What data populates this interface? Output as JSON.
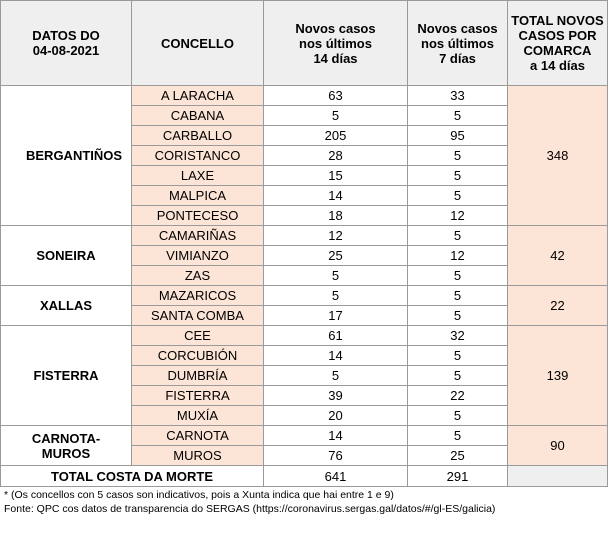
{
  "header": {
    "date": [
      "DATOS DO",
      "04-08-2021"
    ],
    "concello": [
      "CONCELLO"
    ],
    "cases14": [
      "Novos casos",
      "nos últimos",
      "14 días"
    ],
    "cases7": [
      "Novos casos",
      "nos últimos",
      "7 días"
    ],
    "total": [
      "TOTAL NOVOS",
      "CASOS POR",
      "COMARCA",
      "a 14 días"
    ]
  },
  "groups": [
    {
      "comarca": "BERGANTIÑOS",
      "total": 348,
      "concellos": [
        {
          "name": "A LARACHA",
          "c14": 63,
          "c7": 33
        },
        {
          "name": "CABANA",
          "c14": 5,
          "c7": 5
        },
        {
          "name": "CARBALLO",
          "c14": 205,
          "c7": 95
        },
        {
          "name": "CORISTANCO",
          "c14": 28,
          "c7": 5
        },
        {
          "name": "LAXE",
          "c14": 15,
          "c7": 5
        },
        {
          "name": "MALPICA",
          "c14": 14,
          "c7": 5
        },
        {
          "name": "PONTECESO",
          "c14": 18,
          "c7": 12
        }
      ]
    },
    {
      "comarca": "SONEIRA",
      "total": 42,
      "concellos": [
        {
          "name": "CAMARIÑAS",
          "c14": 12,
          "c7": 5
        },
        {
          "name": "VIMIANZO",
          "c14": 25,
          "c7": 12
        },
        {
          "name": "ZAS",
          "c14": 5,
          "c7": 5
        }
      ]
    },
    {
      "comarca": "XALLAS",
      "total": 22,
      "concellos": [
        {
          "name": "MAZARICOS",
          "c14": 5,
          "c7": 5
        },
        {
          "name": "SANTA COMBA",
          "c14": 17,
          "c7": 5
        }
      ]
    },
    {
      "comarca": "FISTERRA",
      "total": 139,
      "concellos": [
        {
          "name": "CEE",
          "c14": 61,
          "c7": 32
        },
        {
          "name": "CORCUBIÓN",
          "c14": 14,
          "c7": 5
        },
        {
          "name": "DUMBRÍA",
          "c14": 5,
          "c7": 5
        },
        {
          "name": "FISTERRA",
          "c14": 39,
          "c7": 22
        },
        {
          "name": "MUXÍA",
          "c14": 20,
          "c7": 5
        }
      ]
    },
    {
      "comarca": "CARNOTA-MUROS",
      "total": 90,
      "concellos": [
        {
          "name": "CARNOTA",
          "c14": 14,
          "c7": 5
        },
        {
          "name": "MUROS",
          "c14": 76,
          "c7": 25
        }
      ]
    }
  ],
  "totals": {
    "label": "TOTAL COSTA DA MORTE",
    "c14": 641,
    "c7": 291
  },
  "footnotes": [
    "* (Os concellos con 5 casos son indicativos, pois a Xunta indica que hai entre 1 e 9)",
    "Fonte: QPC cos datos de transparencia do SERGAS (https://coronavirus.sergas.gal/datos/#/gl-ES/galicia)"
  ]
}
